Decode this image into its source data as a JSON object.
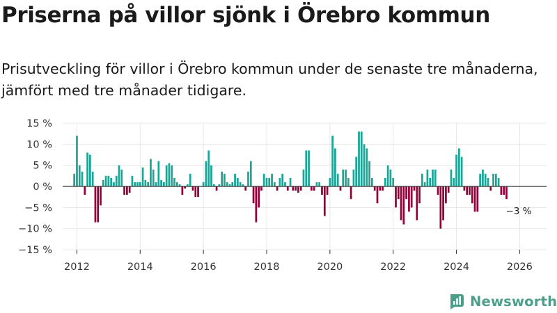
{
  "title": "Priserna på villor sjönk i Örebro kommun",
  "subtitle": "Prisutveckling för villor i Örebro kommun under de senaste tre månaderna, jämfört med tre månader tidigare.",
  "brand": "Newsworthy",
  "colors": {
    "positive": "#1aa596",
    "negative": "#96003a",
    "axis": "#333333",
    "grid": "#e8e8e8",
    "brand": "#4b9e8a"
  },
  "chart_data": {
    "type": "bar",
    "title": "Priserna på villor sjönk i Örebro kommun",
    "xlabel": "",
    "ylabel": "",
    "ylim": [
      -15,
      15
    ],
    "xlim": [
      2011.55,
      2026.85
    ],
    "y_ticks": [
      15,
      10,
      5,
      0,
      -5,
      -10,
      -15
    ],
    "y_tick_labels": [
      "15 %",
      "10 %",
      "5 %",
      "0 %",
      "−5 %",
      "−10 %",
      "−15 %"
    ],
    "x_ticks": [
      2012,
      2014,
      2016,
      2018,
      2020,
      2022,
      2024,
      2026
    ],
    "x_tick_labels": [
      "2012",
      "2014",
      "2016",
      "2018",
      "2020",
      "2022",
      "2024",
      "2026"
    ],
    "grid": true,
    "start_month": "2011-12",
    "end_month": "2026-01",
    "annotation": {
      "text": "−3 %",
      "value": -3
    },
    "values": [
      3,
      12,
      5,
      3.5,
      -2,
      8,
      7.5,
      3.5,
      -8.5,
      -8.5,
      -4.5,
      1.5,
      2.5,
      2.5,
      2,
      1,
      2.5,
      5,
      4,
      -2,
      -2,
      -1.5,
      2.5,
      1,
      1,
      1,
      4.5,
      1.5,
      1,
      6.5,
      4,
      1,
      6,
      1.5,
      1,
      5,
      5.5,
      5,
      2,
      1,
      0.5,
      -2,
      -0.5,
      0.5,
      3,
      -1,
      -2.5,
      -2.5,
      0,
      1,
      6,
      8.5,
      5,
      0.5,
      -1,
      0.5,
      3.5,
      3,
      1,
      0.5,
      1,
      3,
      2,
      1,
      0.5,
      -1,
      3.5,
      6,
      -4,
      -8.5,
      -5,
      -1,
      3,
      2,
      2,
      3,
      1,
      -1,
      2,
      3,
      1,
      -1,
      2,
      -1,
      -1,
      -1.5,
      -1,
      4,
      8.5,
      8.5,
      -1,
      -1,
      1,
      1,
      -2,
      -7,
      -2,
      2,
      12,
      9,
      3,
      -1,
      4,
      4,
      2,
      -3,
      4,
      7,
      13,
      13,
      10,
      9,
      6,
      2,
      -1,
      -4,
      -1,
      -1,
      2,
      5,
      4,
      2,
      -5,
      -3,
      -8,
      -9,
      -3,
      -6,
      -5,
      -1,
      -8,
      -4,
      3,
      1,
      4,
      2,
      4,
      4,
      -2,
      -10,
      -8,
      -4,
      -1.5,
      4,
      2,
      7.5,
      9,
      7,
      -1,
      -2,
      -2,
      -4,
      -6,
      -6,
      3,
      4,
      3,
      2,
      -1,
      3,
      3,
      2,
      -2,
      -2,
      -3
    ]
  }
}
